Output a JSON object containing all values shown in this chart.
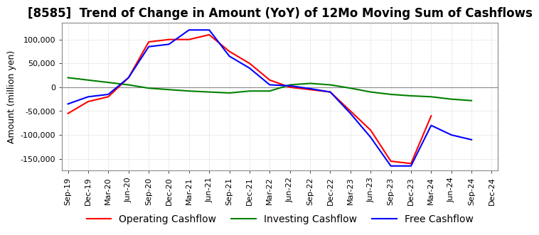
{
  "title": "[8585]  Trend of Change in Amount (YoY) of 12Mo Moving Sum of Cashflows",
  "ylabel": "Amount (million yen)",
  "x_labels": [
    "Sep-19",
    "Dec-19",
    "Mar-20",
    "Jun-20",
    "Sep-20",
    "Dec-20",
    "Mar-21",
    "Jun-21",
    "Sep-21",
    "Dec-21",
    "Mar-22",
    "Jun-22",
    "Sep-22",
    "Dec-22",
    "Mar-23",
    "Jun-23",
    "Sep-23",
    "Dec-23",
    "Mar-24",
    "Jun-24",
    "Sep-24",
    "Dec-24"
  ],
  "operating": [
    -55000,
    -30000,
    -20000,
    20000,
    95000,
    100000,
    100000,
    110000,
    75000,
    50000,
    15000,
    0,
    -5000,
    -10000,
    -50000,
    -90000,
    -155000,
    -160000,
    -60000,
    null,
    null,
    null
  ],
  "investing": [
    20000,
    15000,
    10000,
    5000,
    -2000,
    -5000,
    -8000,
    -10000,
    -12000,
    -8000,
    -8000,
    5000,
    8000,
    5000,
    -2000,
    -10000,
    -15000,
    -18000,
    -20000,
    -25000,
    -28000,
    null
  ],
  "free": [
    -35000,
    -20000,
    -15000,
    20000,
    85000,
    90000,
    120000,
    120000,
    65000,
    40000,
    5000,
    3000,
    -3000,
    -10000,
    -55000,
    -105000,
    -165000,
    -165000,
    -80000,
    -100000,
    -110000,
    null
  ],
  "operating_color": "#ff0000",
  "investing_color": "#008000",
  "free_color": "#0000ff",
  "ylim": [
    -175000,
    135000
  ],
  "yticks": [
    -150000,
    -100000,
    -50000,
    0,
    50000,
    100000
  ],
  "background_color": "#ffffff",
  "grid_color": "#c8c8c8",
  "title_fontsize": 12,
  "axis_fontsize": 9,
  "tick_fontsize": 8
}
